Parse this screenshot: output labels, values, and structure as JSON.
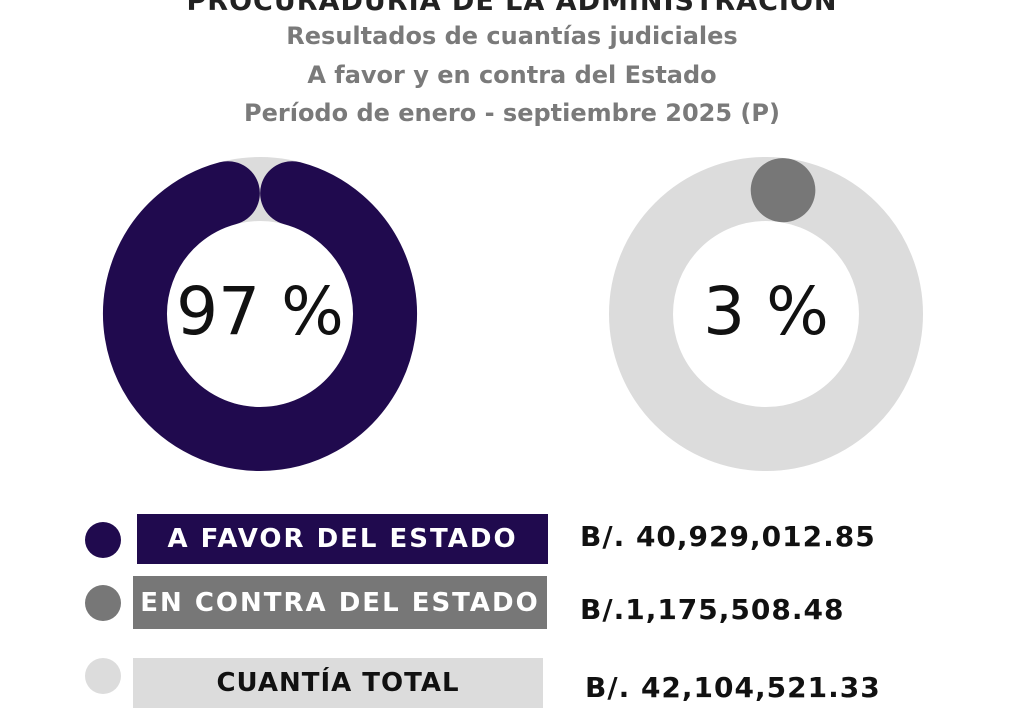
{
  "header": {
    "title": "PROCURADURÍA DE LA ADMINISTRACIÓN",
    "subtitle_1": "Resultados de cuantías judiciales",
    "subtitle_2": "A favor y en contra del Estado",
    "subtitle_3": "Período de enero - septiembre 2025 (P)"
  },
  "colors": {
    "favor": "#200a4e",
    "contra": "#777777",
    "total": "#dcdcdc",
    "track": "#dcdcdc"
  },
  "chart_data": [
    {
      "type": "pie",
      "style": "donut",
      "value": 97,
      "center_label": "97 %",
      "color": "#200a4e"
    },
    {
      "type": "pie",
      "style": "donut",
      "value": 3,
      "center_label": "3 %",
      "color": "#777777"
    }
  ],
  "legend": [
    {
      "label": "A FAVOR DEL ESTADO",
      "amount": "B/. 40,929,012.85",
      "color": "#200a4e"
    },
    {
      "label": "EN CONTRA DEL ESTADO",
      "amount": "B/.1,175,508.48",
      "color": "#777777"
    },
    {
      "label": "CUANTÍA TOTAL",
      "amount": "B/. 42,104,521.33",
      "color": "#dcdcdc"
    }
  ]
}
